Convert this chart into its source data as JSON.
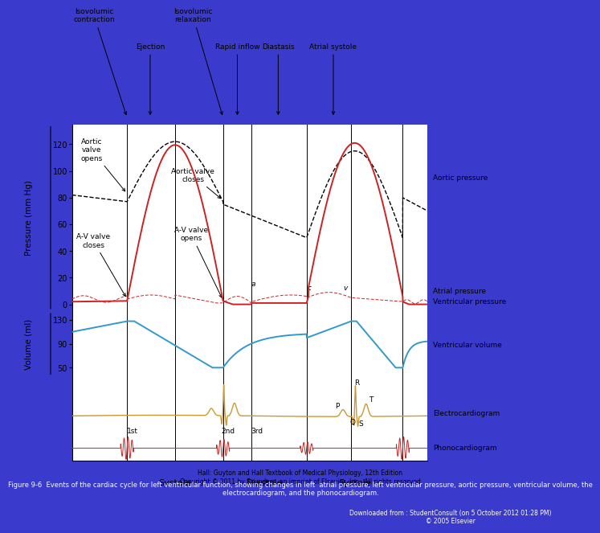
{
  "bg_color": "#3a3acc",
  "plot_bg": "#ffffff",
  "caption": "Figure 9-6  Events of the cardiac cycle for left ventricular function, showing changes in left  atrial pressure, left ventricular pressure, aortic pressure, ventricular volume, the\nelectrocardiogram, and the phonocardiogram.",
  "caption2": "Downloaded from : StudentConsult (on 5 October 2012 01:28 PM)\n© 2005 Elsevier",
  "copyright": "Hall: Guyton and Hall Textbook of Medical Physiology, 12th Edition\nCopyright © 2011 by Saunders, an imprint of Elsevier, Inc.  All rights reserved",
  "pressure_ticks": [
    0,
    20,
    40,
    60,
    80,
    100,
    120
  ],
  "volume_ticks": [
    50,
    90,
    130
  ],
  "colors": {
    "aortic": "#000000",
    "ventricular": "#cc2222",
    "atrial": "#cc2222",
    "volume": "#3399cc",
    "ecg": "#cc9933",
    "phono": "#cc2222"
  }
}
